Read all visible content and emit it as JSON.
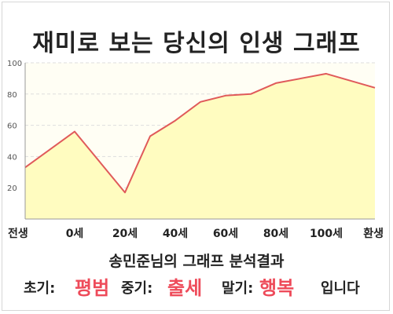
{
  "title": "재미로 보는 당신의 인생 그래프",
  "chart_data": {
    "type": "area",
    "title": "재미로 보는 당신의 인생 그래프",
    "x_labels": [
      "전생",
      "0세",
      "20세",
      "40세",
      "60세",
      "80세",
      "100세",
      "환생"
    ],
    "ylim": [
      0,
      100
    ],
    "yticks": [
      20,
      40,
      60,
      80,
      100
    ],
    "grid": true,
    "series": [
      {
        "points": [
          [
            "전생",
            33
          ],
          [
            "0세",
            56
          ],
          [
            "20세",
            17
          ],
          [
            "30세",
            53
          ],
          [
            "40세",
            63
          ],
          [
            "50세",
            75
          ],
          [
            "60세",
            79
          ],
          [
            "70세",
            80
          ],
          [
            "80세",
            87
          ],
          [
            "100세",
            93
          ],
          [
            "환생",
            84
          ]
        ]
      }
    ],
    "colors": {
      "line": "#e05a5a",
      "fill": "#fffcc0"
    }
  },
  "caption": "송민준님의 그래프 분석결과",
  "summary": {
    "early_label": "초기:",
    "early_value": "평범",
    "middle_label": "중기:",
    "middle_value": "출세",
    "late_label": "말기:",
    "late_value": "행복",
    "ending": "입니다"
  }
}
